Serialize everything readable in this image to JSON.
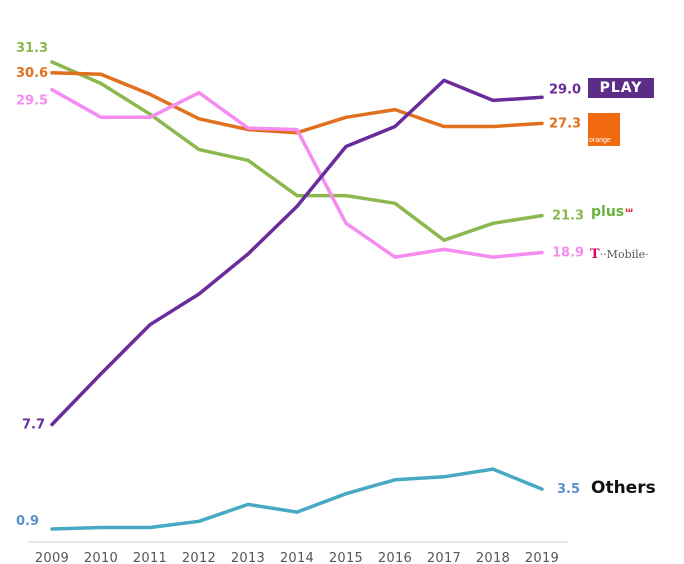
{
  "chart_data": {
    "type": "line",
    "title": "",
    "xlabel": "",
    "ylabel": "",
    "x": [
      "2009",
      "2010",
      "2011",
      "2012",
      "2013",
      "2014",
      "2015",
      "2016",
      "2017",
      "2018",
      "2019"
    ],
    "ylim": [
      0.9,
      31.3
    ],
    "grid": false,
    "legend": "right (logos at line ends)",
    "series": [
      {
        "name": "PLAY",
        "color": "#6a2c9a",
        "values": [
          7.7,
          11.0,
          14.2,
          16.2,
          18.8,
          21.9,
          25.8,
          27.1,
          30.1,
          28.8,
          29.0
        ],
        "start_label": "7.7",
        "end_label": "29.0"
      },
      {
        "name": "orange",
        "color": "#e0701e",
        "values": [
          30.6,
          30.5,
          29.2,
          27.6,
          26.9,
          26.7,
          27.7,
          28.2,
          27.1,
          27.1,
          27.3
        ],
        "start_label": "30.6",
        "end_label": "27.3"
      },
      {
        "name": "plus",
        "color": "#8cb84f",
        "values": [
          31.3,
          29.9,
          27.9,
          25.6,
          24.9,
          22.6,
          22.6,
          22.1,
          19.7,
          20.8,
          21.3
        ],
        "start_label": "31.3",
        "end_label": "21.3"
      },
      {
        "name": "T-Mobile",
        "color": "#f58cf0",
        "values": [
          29.5,
          27.7,
          27.7,
          29.3,
          27.0,
          26.9,
          20.8,
          18.6,
          19.1,
          18.6,
          18.9
        ],
        "start_label": "29.5",
        "end_label": "18.9"
      },
      {
        "name": "Others",
        "color": "#48a9c5",
        "values": [
          0.9,
          1.0,
          1.0,
          1.4,
          2.5,
          2.0,
          3.2,
          4.1,
          4.3,
          4.8,
          3.5
        ],
        "start_label": "0.9",
        "end_label": "3.5"
      }
    ]
  },
  "label_colors": {
    "PLAY": "#6a2c9a",
    "orange": "#e0701e",
    "plus": "#8cb84f",
    "T-Mobile": "#f58cf0",
    "Others": "#5b8fcf"
  },
  "logos": {
    "play": "PLAY",
    "orange": "orange",
    "plus_text": "plus",
    "plus_mark": "ͦ",
    "tmobile_t": "T",
    "tmobile_text": "··Mobile·",
    "others": "Others"
  }
}
